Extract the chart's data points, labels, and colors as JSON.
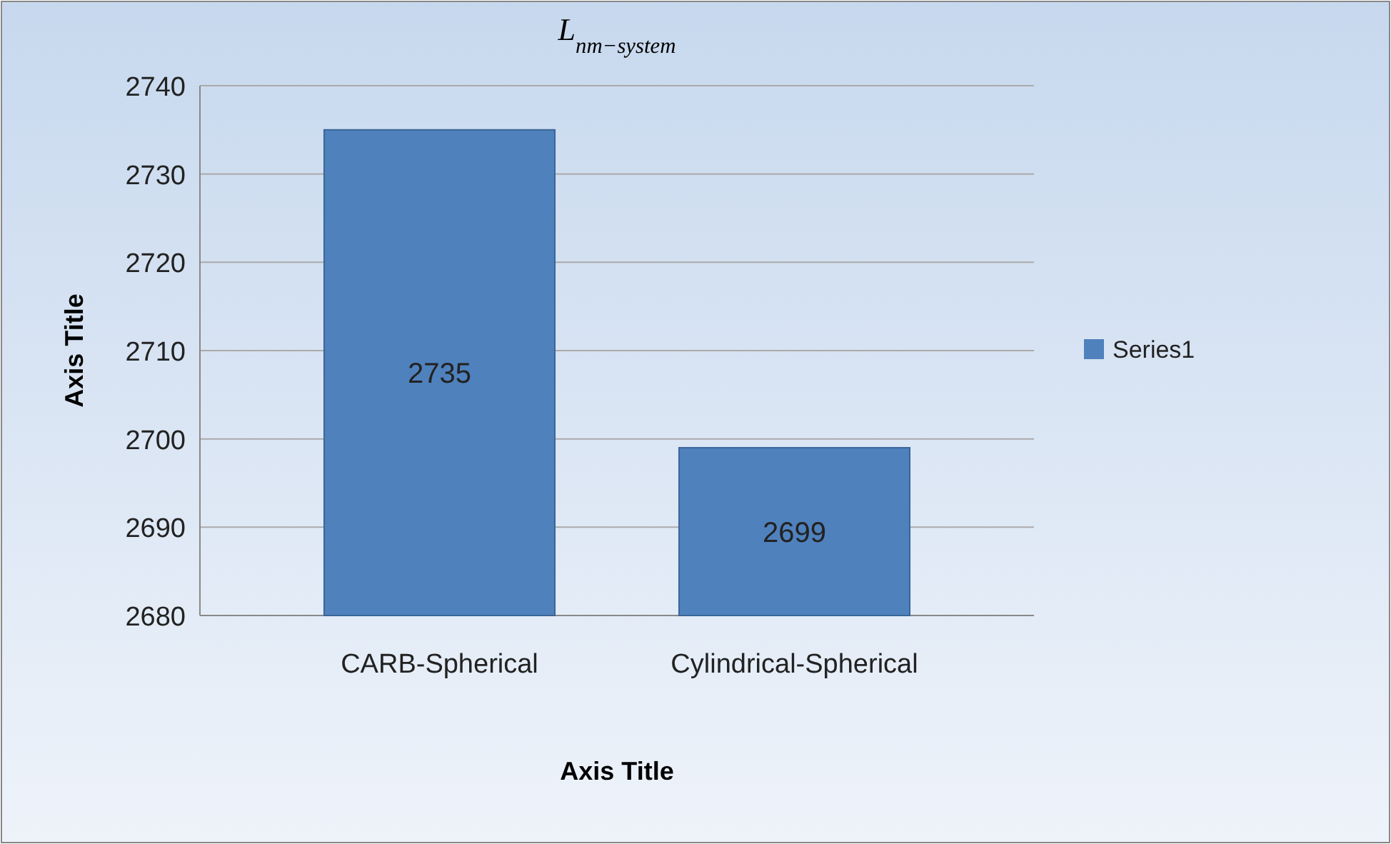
{
  "chart_data": {
    "type": "bar",
    "title": "L$_{nm−system}$",
    "xlabel": "Axis Title",
    "ylabel": "Axis Title",
    "categories": [
      "CARB-Spherical",
      "Cylindrical-Spherical"
    ],
    "series": [
      {
        "name": "Series1",
        "color": "#4f81bd",
        "values": [
          2735,
          2699
        ]
      }
    ],
    "ylim": [
      2680,
      2740
    ],
    "yticks": [
      2680,
      2690,
      2700,
      2710,
      2720,
      2730,
      2740
    ],
    "grid": "y",
    "legend": "right",
    "data_labels": true
  }
}
